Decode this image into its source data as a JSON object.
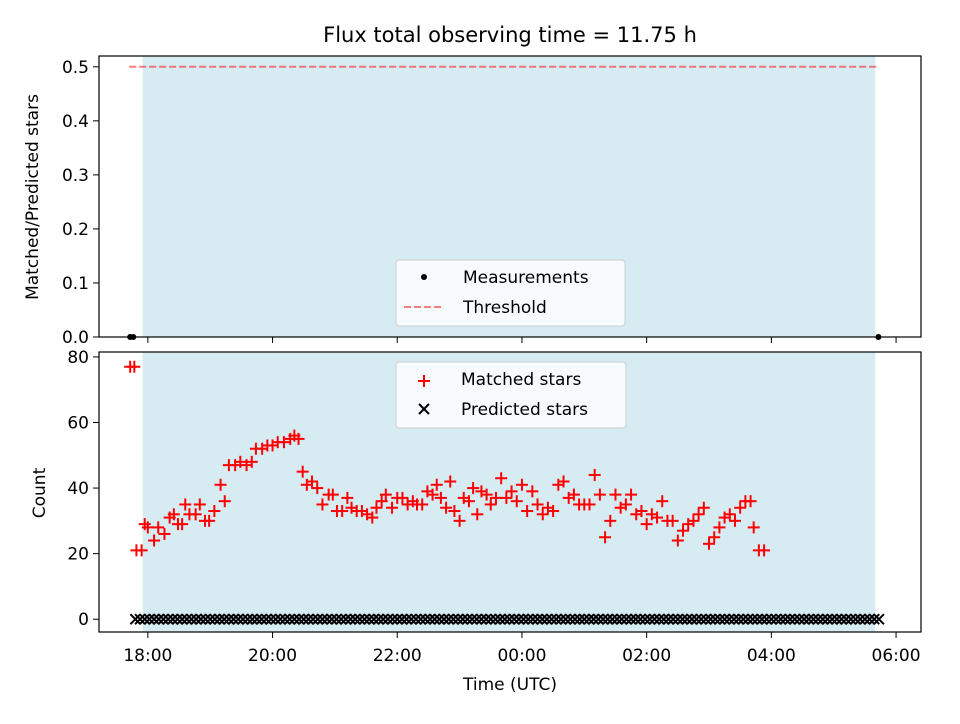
{
  "title": "Flux total observing time = 11.75 h",
  "colors": {
    "shade": "#add8e6",
    "threshold": "#ff0000",
    "matched": "#ff0000",
    "predicted": "#000000",
    "measurement": "#000000"
  },
  "chart_data": [
    {
      "type": "scatter",
      "ylabel": "Matched/Predicted stars",
      "xlim": [
        "17:13",
        "06:24"
      ],
      "ylim": [
        0,
        0.52
      ],
      "yticks": [
        "0.0",
        "0.1",
        "0.2",
        "0.3",
        "0.4",
        "0.5"
      ],
      "shaded_interval": [
        "17:55",
        "05:40"
      ],
      "legend_position": "lower-center",
      "legend": [
        "Measurements",
        "Threshold"
      ],
      "threshold": {
        "name": "Threshold",
        "value": 0.5,
        "x_range": [
          "17:42",
          "05:42"
        ]
      },
      "measurements": {
        "name": "Measurements",
        "points": [
          [
            "17:43",
            0
          ],
          [
            "17:46",
            0
          ],
          [
            "05:43",
            0
          ]
        ]
      }
    },
    {
      "type": "scatter",
      "xlabel": "Time (UTC)",
      "ylabel": "Count",
      "xlim": [
        "17:13",
        "06:24"
      ],
      "ylim": [
        -3.9,
        81.5
      ],
      "yticks": [
        "0",
        "20",
        "40",
        "60",
        "80"
      ],
      "xticks": [
        "18:00",
        "20:00",
        "22:00",
        "00:00",
        "02:00",
        "04:00",
        "06:00"
      ],
      "shaded_interval": [
        "17:55",
        "05:40"
      ],
      "legend_position": "upper-center",
      "legend": [
        "Matched stars",
        "Predicted stars"
      ],
      "series": [
        {
          "name": "Matched stars",
          "marker": "plus",
          "points": [
            [
              "17:43",
              77
            ],
            [
              "17:47",
              77
            ],
            [
              "17:49",
              21
            ],
            [
              "17:54",
              21
            ],
            [
              "17:57",
              29
            ],
            [
              "18:00",
              28
            ],
            [
              "18:06",
              24
            ],
            [
              "18:10",
              28
            ],
            [
              "18:16",
              26
            ],
            [
              "18:21",
              31
            ],
            [
              "18:25",
              32
            ],
            [
              "18:29",
              29
            ],
            [
              "18:33",
              29
            ],
            [
              "18:36",
              35
            ],
            [
              "18:40",
              32
            ],
            [
              "18:46",
              32
            ],
            [
              "18:50",
              35
            ],
            [
              "18:55",
              30
            ],
            [
              "18:59",
              30
            ],
            [
              "19:04",
              33
            ],
            [
              "19:10",
              41
            ],
            [
              "19:14",
              36
            ],
            [
              "19:18",
              47
            ],
            [
              "19:24",
              47
            ],
            [
              "19:29",
              48
            ],
            [
              "19:35",
              47
            ],
            [
              "19:40",
              48
            ],
            [
              "19:44",
              52
            ],
            [
              "19:50",
              52
            ],
            [
              "19:55",
              53
            ],
            [
              "20:00",
              53
            ],
            [
              "20:05",
              54
            ],
            [
              "20:11",
              54
            ],
            [
              "20:17",
              55
            ],
            [
              "20:21",
              56
            ],
            [
              "20:25",
              55
            ],
            [
              "20:29",
              45
            ],
            [
              "20:33",
              41
            ],
            [
              "20:38",
              42
            ],
            [
              "20:43",
              40
            ],
            [
              "20:48",
              35
            ],
            [
              "20:54",
              38
            ],
            [
              "20:58",
              38
            ],
            [
              "21:02",
              33
            ],
            [
              "21:07",
              33
            ],
            [
              "21:12",
              37
            ],
            [
              "21:16",
              34
            ],
            [
              "21:21",
              33
            ],
            [
              "21:26",
              33
            ],
            [
              "21:31",
              32
            ],
            [
              "21:36",
              31
            ],
            [
              "21:40",
              34
            ],
            [
              "21:45",
              36
            ],
            [
              "21:49",
              38
            ],
            [
              "21:55",
              34
            ],
            [
              "22:00",
              37
            ],
            [
              "22:05",
              37
            ],
            [
              "22:10",
              35
            ],
            [
              "22:15",
              36
            ],
            [
              "22:19",
              35
            ],
            [
              "22:24",
              35
            ],
            [
              "22:29",
              39
            ],
            [
              "22:34",
              38
            ],
            [
              "22:38",
              41
            ],
            [
              "22:42",
              37
            ],
            [
              "22:47",
              34
            ],
            [
              "22:51",
              42
            ],
            [
              "22:55",
              33
            ],
            [
              "23:00",
              30
            ],
            [
              "23:04",
              37
            ],
            [
              "23:09",
              36
            ],
            [
              "23:13",
              40
            ],
            [
              "23:17",
              32
            ],
            [
              "23:21",
              39
            ],
            [
              "23:26",
              38
            ],
            [
              "23:30",
              35
            ],
            [
              "23:35",
              37
            ],
            [
              "23:40",
              43
            ],
            [
              "23:45",
              37
            ],
            [
              "23:50",
              39
            ],
            [
              "23:55",
              36
            ],
            [
              "24:00",
              41
            ],
            [
              "24:05",
              33
            ],
            [
              "24:10",
              39
            ],
            [
              "24:15",
              35
            ],
            [
              "24:20",
              32
            ],
            [
              "24:25",
              34
            ],
            [
              "24:30",
              33
            ],
            [
              "24:35",
              41
            ],
            [
              "24:40",
              42
            ],
            [
              "24:45",
              37
            ],
            [
              "24:50",
              38
            ],
            [
              "24:55",
              35
            ],
            [
              "25:00",
              35
            ],
            [
              "25:05",
              35
            ],
            [
              "25:10",
              44
            ],
            [
              "25:15",
              38
            ],
            [
              "25:20",
              25
            ],
            [
              "25:25",
              30
            ],
            [
              "25:30",
              38
            ],
            [
              "25:35",
              34
            ],
            [
              "25:40",
              35
            ],
            [
              "25:45",
              38
            ],
            [
              "25:50",
              32
            ],
            [
              "25:55",
              33
            ],
            [
              "26:00",
              29
            ],
            [
              "26:05",
              32
            ],
            [
              "26:10",
              31
            ],
            [
              "26:15",
              36
            ],
            [
              "26:20",
              30
            ],
            [
              "26:25",
              30
            ],
            [
              "26:30",
              24
            ],
            [
              "26:35",
              27
            ],
            [
              "26:40",
              29
            ],
            [
              "26:45",
              30
            ],
            [
              "26:50",
              32
            ],
            [
              "26:55",
              34
            ],
            [
              "27:00",
              23
            ],
            [
              "27:05",
              25
            ],
            [
              "27:10",
              28
            ],
            [
              "27:15",
              31
            ],
            [
              "27:20",
              32
            ],
            [
              "27:25",
              30
            ],
            [
              "27:30",
              34
            ],
            [
              "27:35",
              36
            ],
            [
              "27:40",
              36
            ],
            [
              "27:43",
              28
            ],
            [
              "27:48",
              21
            ],
            [
              "27:53",
              21
            ]
          ]
        },
        {
          "name": "Predicted stars",
          "marker": "x",
          "constant_value": 0,
          "x_start": "17:48",
          "x_end": "05:46",
          "x_step_minutes": 4.5
        }
      ]
    }
  ]
}
